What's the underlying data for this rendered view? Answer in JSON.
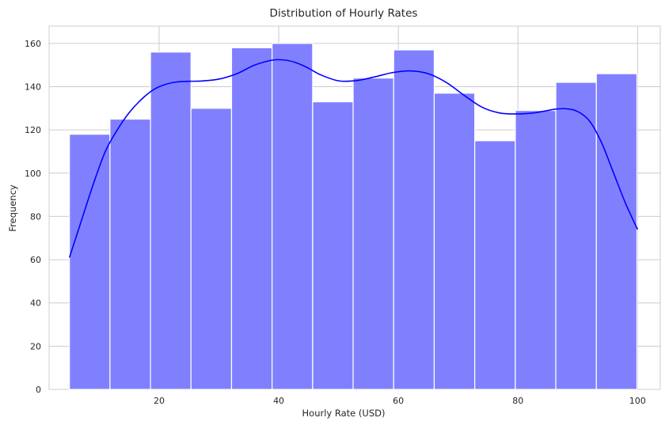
{
  "chart_data": {
    "type": "histogram",
    "title": "Distribution of Hourly Rates",
    "xlabel": "Hourly Rate (USD)",
    "ylabel": "Frequency",
    "xlim": [
      1.6,
      103.8
    ],
    "ylim": [
      0,
      168
    ],
    "xticks": [
      20,
      40,
      60,
      80,
      100
    ],
    "yticks": [
      0,
      20,
      40,
      60,
      80,
      100,
      120,
      140,
      160
    ],
    "grid": true,
    "legend": "none",
    "bin_edges": [
      5.0,
      11.78,
      18.56,
      25.33,
      32.11,
      38.89,
      45.67,
      52.44,
      59.22,
      66.0,
      72.78,
      79.56,
      86.33,
      93.11,
      99.89
    ],
    "counts": [
      118,
      125,
      156,
      130,
      158,
      160,
      133,
      144,
      157,
      137,
      115,
      129,
      142,
      146
    ],
    "bar_color": "#8080ff",
    "kde": {
      "color": "#0000ff",
      "x": [
        5,
        7,
        9,
        11,
        13,
        15,
        17,
        19,
        21,
        23,
        25,
        27,
        30,
        33,
        36,
        39,
        41,
        43,
        45,
        47,
        50,
        53,
        56,
        59,
        62,
        65,
        68,
        71,
        74,
        77,
        80,
        83,
        86,
        88,
        90,
        92,
        94,
        96,
        98,
        100
      ],
      "y": [
        61,
        78,
        95,
        110,
        120,
        128,
        134,
        138.5,
        141,
        142.2,
        142.5,
        142.6,
        143.5,
        146,
        150,
        152.3,
        152.3,
        151,
        148.5,
        145.5,
        142.7,
        142.8,
        144.5,
        146.5,
        147.3,
        146,
        142,
        136,
        130.5,
        127.8,
        127.4,
        128,
        129.5,
        129.8,
        128.5,
        124,
        114,
        100,
        86,
        74
      ]
    }
  }
}
